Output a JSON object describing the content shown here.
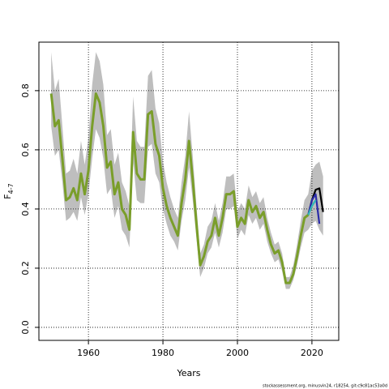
{
  "chart_data": {
    "type": "line",
    "xlabel": "Years",
    "ylabel": {
      "text": "F",
      "subscript": "4-7"
    },
    "caption": "stockassessment.org, minusvin24, r18254, git:c9c81ac53a0d",
    "x": [
      1950,
      1951,
      1952,
      1953,
      1954,
      1955,
      1956,
      1957,
      1958,
      1959,
      1960,
      1961,
      1962,
      1963,
      1964,
      1965,
      1966,
      1967,
      1968,
      1969,
      1970,
      1971,
      1972,
      1973,
      1974,
      1975,
      1976,
      1977,
      1978,
      1979,
      1980,
      1981,
      1982,
      1983,
      1984,
      1985,
      1986,
      1987,
      1988,
      1989,
      1990,
      1991,
      1992,
      1993,
      1994,
      1995,
      1996,
      1997,
      1998,
      1999,
      2000,
      2001,
      2002,
      2003,
      2004,
      2005,
      2006,
      2007,
      2008,
      2009,
      2010,
      2011,
      2012,
      2013,
      2014,
      2015,
      2016,
      2017,
      2018,
      2019,
      2020,
      2021,
      2022,
      2023
    ],
    "band": {
      "color": "#bebebe",
      "upper": [
        0.93,
        0.8,
        0.84,
        0.68,
        0.52,
        0.53,
        0.57,
        0.52,
        0.63,
        0.55,
        0.64,
        0.82,
        0.93,
        0.9,
        0.82,
        0.65,
        0.67,
        0.55,
        0.59,
        0.49,
        0.46,
        0.41,
        0.78,
        0.63,
        0.61,
        0.61,
        0.85,
        0.87,
        0.74,
        0.69,
        0.56,
        0.49,
        0.44,
        0.4,
        0.37,
        0.49,
        0.58,
        0.73,
        0.58,
        0.41,
        0.25,
        0.28,
        0.34,
        0.36,
        0.42,
        0.36,
        0.42,
        0.51,
        0.51,
        0.52,
        0.39,
        0.42,
        0.4,
        0.48,
        0.44,
        0.46,
        0.42,
        0.44,
        0.37,
        0.32,
        0.28,
        0.29,
        0.25,
        0.17,
        0.17,
        0.21,
        0.28,
        0.36,
        0.43,
        0.45,
        0.53,
        0.55,
        0.56,
        0.51
      ],
      "lower": [
        0.68,
        0.58,
        0.6,
        0.49,
        0.36,
        0.37,
        0.39,
        0.36,
        0.44,
        0.38,
        0.45,
        0.57,
        0.67,
        0.64,
        0.57,
        0.45,
        0.47,
        0.37,
        0.41,
        0.33,
        0.31,
        0.27,
        0.56,
        0.43,
        0.42,
        0.42,
        0.61,
        0.62,
        0.52,
        0.49,
        0.4,
        0.35,
        0.31,
        0.29,
        0.26,
        0.36,
        0.43,
        0.54,
        0.43,
        0.3,
        0.17,
        0.2,
        0.25,
        0.27,
        0.32,
        0.27,
        0.32,
        0.4,
        0.4,
        0.41,
        0.3,
        0.33,
        0.31,
        0.38,
        0.35,
        0.37,
        0.33,
        0.35,
        0.29,
        0.25,
        0.22,
        0.23,
        0.19,
        0.13,
        0.13,
        0.16,
        0.21,
        0.27,
        0.32,
        0.33,
        0.35,
        0.36,
        0.33,
        0.31
      ]
    },
    "series": [
      {
        "color": "#000000",
        "values": [
          0.79,
          0.68,
          0.7,
          0.57,
          0.43,
          0.44,
          0.47,
          0.43,
          0.52,
          0.45,
          0.53,
          0.68,
          0.79,
          0.76,
          0.68,
          0.54,
          0.56,
          0.45,
          0.49,
          0.4,
          0.38,
          0.33,
          0.66,
          0.52,
          0.5,
          0.5,
          0.72,
          0.73,
          0.62,
          0.58,
          0.47,
          0.41,
          0.37,
          0.34,
          0.31,
          0.42,
          0.5,
          0.63,
          0.5,
          0.35,
          0.21,
          0.24,
          0.29,
          0.31,
          0.37,
          0.31,
          0.37,
          0.45,
          0.45,
          0.46,
          0.34,
          0.37,
          0.35,
          0.43,
          0.39,
          0.41,
          0.37,
          0.39,
          0.33,
          0.28,
          0.25,
          0.26,
          0.22,
          0.15,
          0.15,
          0.18,
          0.24,
          0.31,
          0.37,
          0.38,
          0.43,
          0.465,
          0.47,
          0.39
        ]
      },
      {
        "color": "#2a2aa8",
        "values": [
          0.79,
          0.68,
          0.7,
          0.57,
          0.43,
          0.44,
          0.47,
          0.43,
          0.52,
          0.45,
          0.53,
          0.68,
          0.79,
          0.76,
          0.68,
          0.54,
          0.56,
          0.45,
          0.49,
          0.4,
          0.38,
          0.33,
          0.66,
          0.52,
          0.5,
          0.5,
          0.72,
          0.73,
          0.62,
          0.58,
          0.47,
          0.41,
          0.37,
          0.34,
          0.31,
          0.42,
          0.5,
          0.63,
          0.5,
          0.35,
          0.21,
          0.24,
          0.29,
          0.31,
          0.37,
          0.31,
          0.37,
          0.45,
          0.45,
          0.46,
          0.34,
          0.37,
          0.35,
          0.43,
          0.39,
          0.41,
          0.37,
          0.39,
          0.33,
          0.28,
          0.25,
          0.26,
          0.22,
          0.15,
          0.15,
          0.18,
          0.24,
          0.31,
          0.37,
          0.38,
          0.43,
          0.45,
          0.35,
          null
        ]
      },
      {
        "color": "#2fb8b8",
        "values": [
          0.79,
          0.68,
          0.7,
          0.57,
          0.43,
          0.44,
          0.47,
          0.43,
          0.52,
          0.45,
          0.53,
          0.68,
          0.79,
          0.76,
          0.68,
          0.54,
          0.56,
          0.45,
          0.49,
          0.4,
          0.38,
          0.33,
          0.66,
          0.52,
          0.5,
          0.5,
          0.72,
          0.73,
          0.62,
          0.58,
          0.47,
          0.41,
          0.37,
          0.34,
          0.31,
          0.42,
          0.5,
          0.63,
          0.5,
          0.35,
          0.21,
          0.24,
          0.29,
          0.31,
          0.37,
          0.31,
          0.37,
          0.45,
          0.45,
          0.46,
          0.34,
          0.37,
          0.35,
          0.43,
          0.39,
          0.41,
          0.37,
          0.39,
          0.33,
          0.28,
          0.25,
          0.26,
          0.22,
          0.15,
          0.15,
          0.18,
          0.24,
          0.31,
          0.37,
          0.38,
          0.41,
          0.43,
          null,
          null
        ]
      },
      {
        "color": "#7a9e2a",
        "values": [
          0.79,
          0.68,
          0.7,
          0.57,
          0.43,
          0.44,
          0.47,
          0.43,
          0.52,
          0.45,
          0.53,
          0.68,
          0.79,
          0.76,
          0.68,
          0.54,
          0.56,
          0.45,
          0.49,
          0.4,
          0.38,
          0.33,
          0.66,
          0.52,
          0.5,
          0.5,
          0.72,
          0.73,
          0.62,
          0.58,
          0.47,
          0.41,
          0.37,
          0.34,
          0.31,
          0.42,
          0.5,
          0.63,
          0.5,
          0.35,
          0.21,
          0.24,
          0.29,
          0.31,
          0.37,
          0.31,
          0.37,
          0.45,
          0.45,
          0.46,
          0.34,
          0.37,
          0.35,
          0.43,
          0.39,
          0.41,
          0.37,
          0.39,
          0.33,
          0.28,
          0.25,
          0.26,
          0.22,
          0.15,
          0.15,
          0.18,
          0.24,
          0.31,
          0.37,
          0.38,
          null,
          null,
          null,
          null
        ]
      }
    ],
    "xlim": [
      1946.7,
      2027.2
    ],
    "ylim": [
      -0.044,
      0.964
    ],
    "xticks": [
      1960,
      1980,
      2000,
      2020
    ],
    "yticks": [
      {
        "value": 0,
        "label": "0.0"
      },
      0.2,
      0.4,
      0.6,
      0.8
    ],
    "grid": true
  }
}
